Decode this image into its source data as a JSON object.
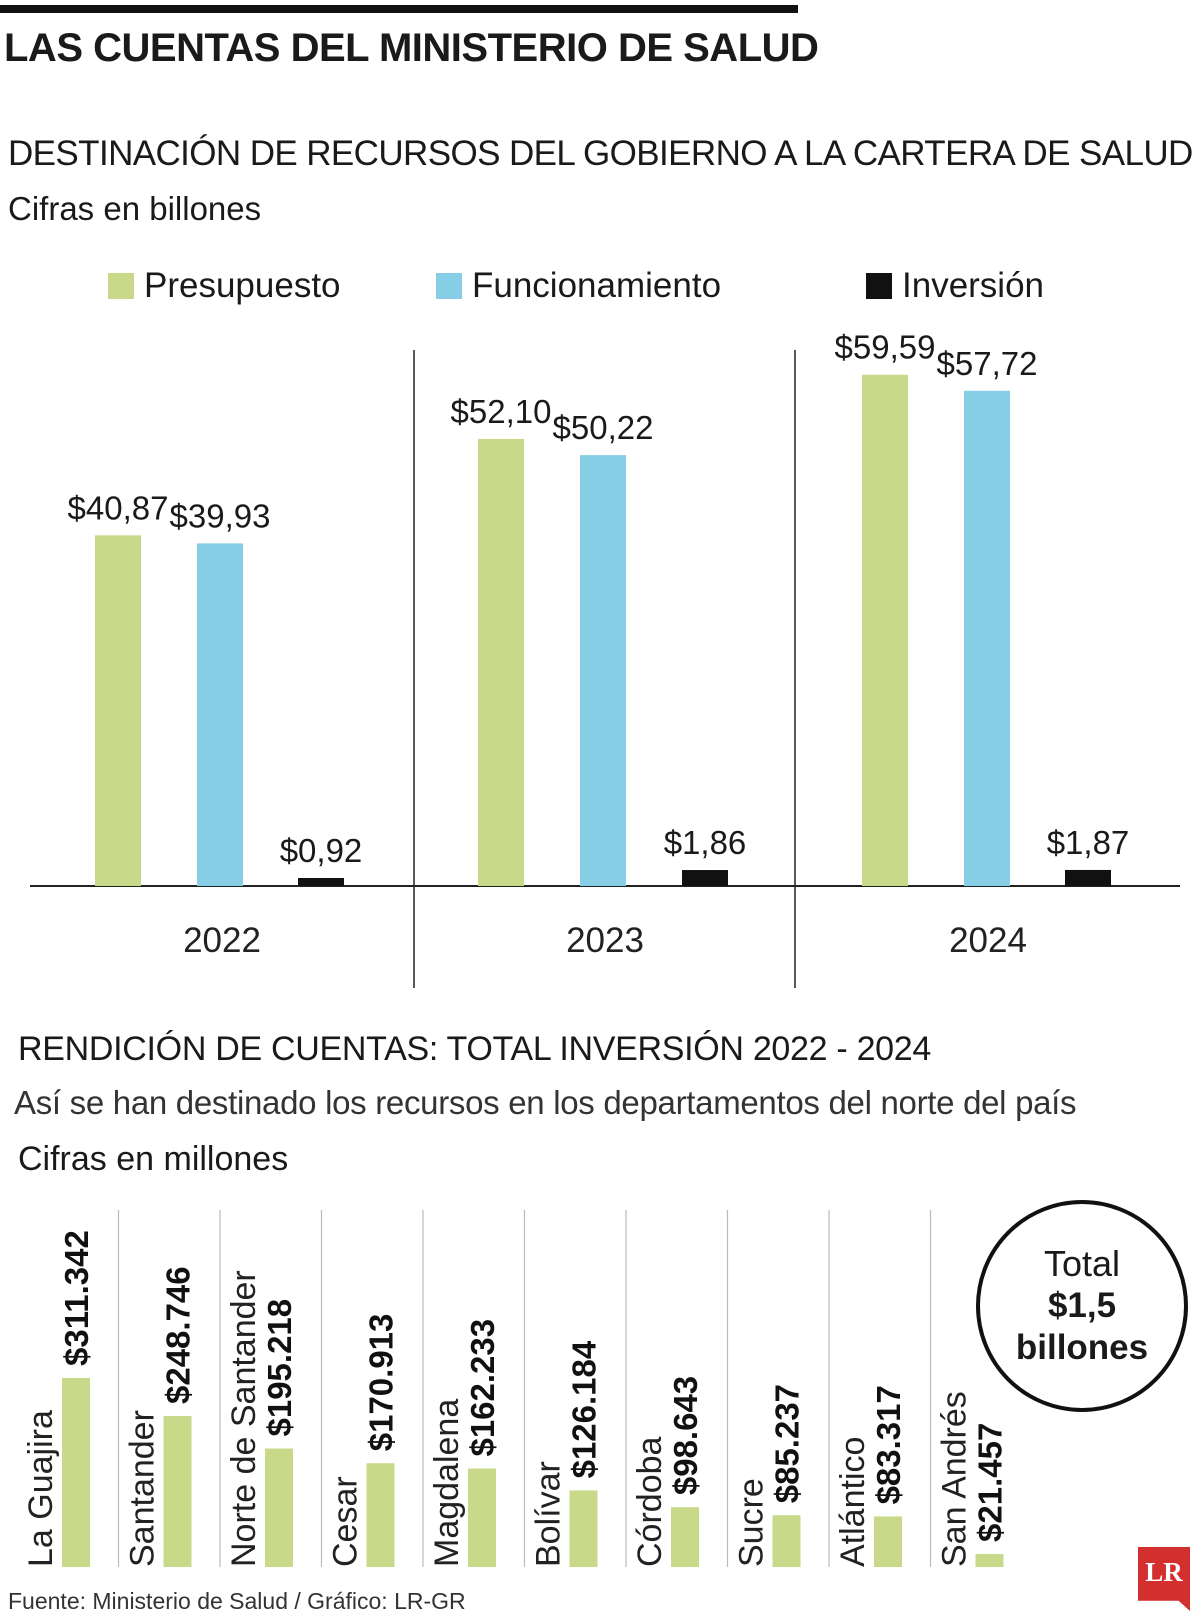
{
  "header": {
    "title": "LAS CUENTAS DEL MINISTERIO DE SALUD"
  },
  "colors": {
    "presupuesto": "#c8d98a",
    "funcionamiento": "#86cde6",
    "inversion": "#111111",
    "accent": "#d42f2f"
  },
  "chart1": {
    "title": "DESTINACIÓN DE RECURSOS DEL GOBIERNO A LA CARTERA DE SALUD",
    "unit": "Cifras en billones",
    "legend": [
      {
        "label": "Presupuesto",
        "color": "#c8d98a"
      },
      {
        "label": "Funcionamiento",
        "color": "#86cde6"
      },
      {
        "label": "Inversión",
        "color": "#111111"
      }
    ]
  },
  "chart2": {
    "title": "RENDICIÓN DE CUENTAS: TOTAL INVERSIÓN 2022 - 2024",
    "subtitle": "Así se han destinado los recursos en los departamentos del norte del país",
    "unit": "Cifras en millones"
  },
  "total": {
    "label": "Total",
    "value": "$1,5",
    "unit": "billones"
  },
  "footer": {
    "source": "Fuente: Ministerio de Salud / Gráfico: LR-GR",
    "logo": "LR"
  },
  "chart_data": [
    {
      "type": "bar",
      "categories": [
        "2022",
        "2023",
        "2024"
      ],
      "series": [
        {
          "name": "Presupuesto",
          "values": [
            40.87,
            52.1,
            59.59
          ],
          "labels": [
            "$40,87",
            "$52,10",
            "$59,59"
          ],
          "color": "#c8d98a"
        },
        {
          "name": "Funcionamiento",
          "values": [
            39.93,
            50.22,
            57.72
          ],
          "labels": [
            "$39,93",
            "$50,22",
            "$57,72"
          ],
          "color": "#86cde6"
        },
        {
          "name": "Inversión",
          "values": [
            0.92,
            1.86,
            1.87
          ],
          "labels": [
            "$0,92",
            "$1,86",
            "$1,87"
          ],
          "color": "#111111"
        }
      ],
      "ylim": [
        0,
        65
      ],
      "grid": false,
      "legend_position": "top"
    },
    {
      "type": "bar",
      "categories": [
        "La Guajira",
        "Santander",
        "Norte de Santander",
        "Cesar",
        "Magdalena",
        "Bolívar",
        "Córdoba",
        "Sucre",
        "Atlántico",
        "San Andrés"
      ],
      "values": [
        311342,
        248746,
        195218,
        170913,
        162233,
        126184,
        98643,
        85237,
        83317,
        21457
      ],
      "labels": [
        "$311.342",
        "$248.746",
        "$195.218",
        "$170.913",
        "$162.233",
        "$126.184",
        "$98.643",
        "$85.237",
        "$83.317",
        "$21.457"
      ],
      "color": "#c8d98a",
      "ylim": [
        0,
        320000
      ],
      "grid": false
    }
  ]
}
